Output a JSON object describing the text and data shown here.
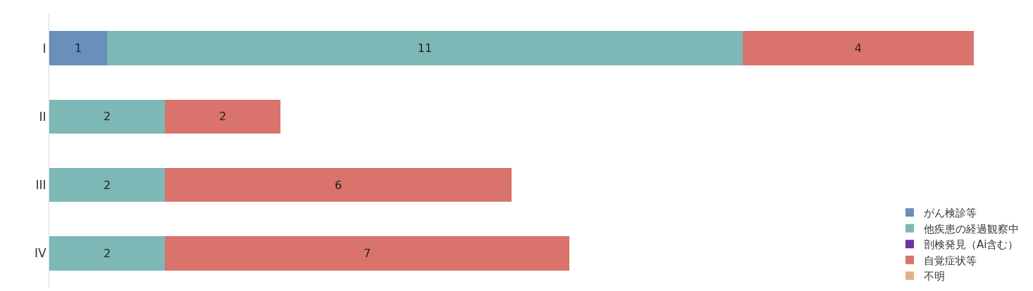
{
  "chart_data": {
    "type": "bar",
    "orientation": "horizontal",
    "stacked": true,
    "data_labels": true,
    "legend": "bottom right",
    "categories": [
      "I",
      "II",
      "III",
      "IV"
    ],
    "series": [
      {
        "name": "がん検診等",
        "color": "#6a8fba",
        "values": [
          1,
          null,
          null,
          null
        ]
      },
      {
        "name": "他疾患の経過観察中",
        "color": "#7db8b6",
        "values": [
          11,
          2,
          2,
          2
        ]
      },
      {
        "name": "剖検発見（Ai含む）",
        "color": "#7030a0",
        "values": [
          null,
          null,
          null,
          null
        ]
      },
      {
        "name": "自覚症状等",
        "color": "#d9736c",
        "values": [
          4,
          2,
          6,
          7
        ]
      },
      {
        "name": "不明",
        "color": "#e0b08a",
        "values": [
          null,
          null,
          null,
          null
        ]
      }
    ]
  }
}
